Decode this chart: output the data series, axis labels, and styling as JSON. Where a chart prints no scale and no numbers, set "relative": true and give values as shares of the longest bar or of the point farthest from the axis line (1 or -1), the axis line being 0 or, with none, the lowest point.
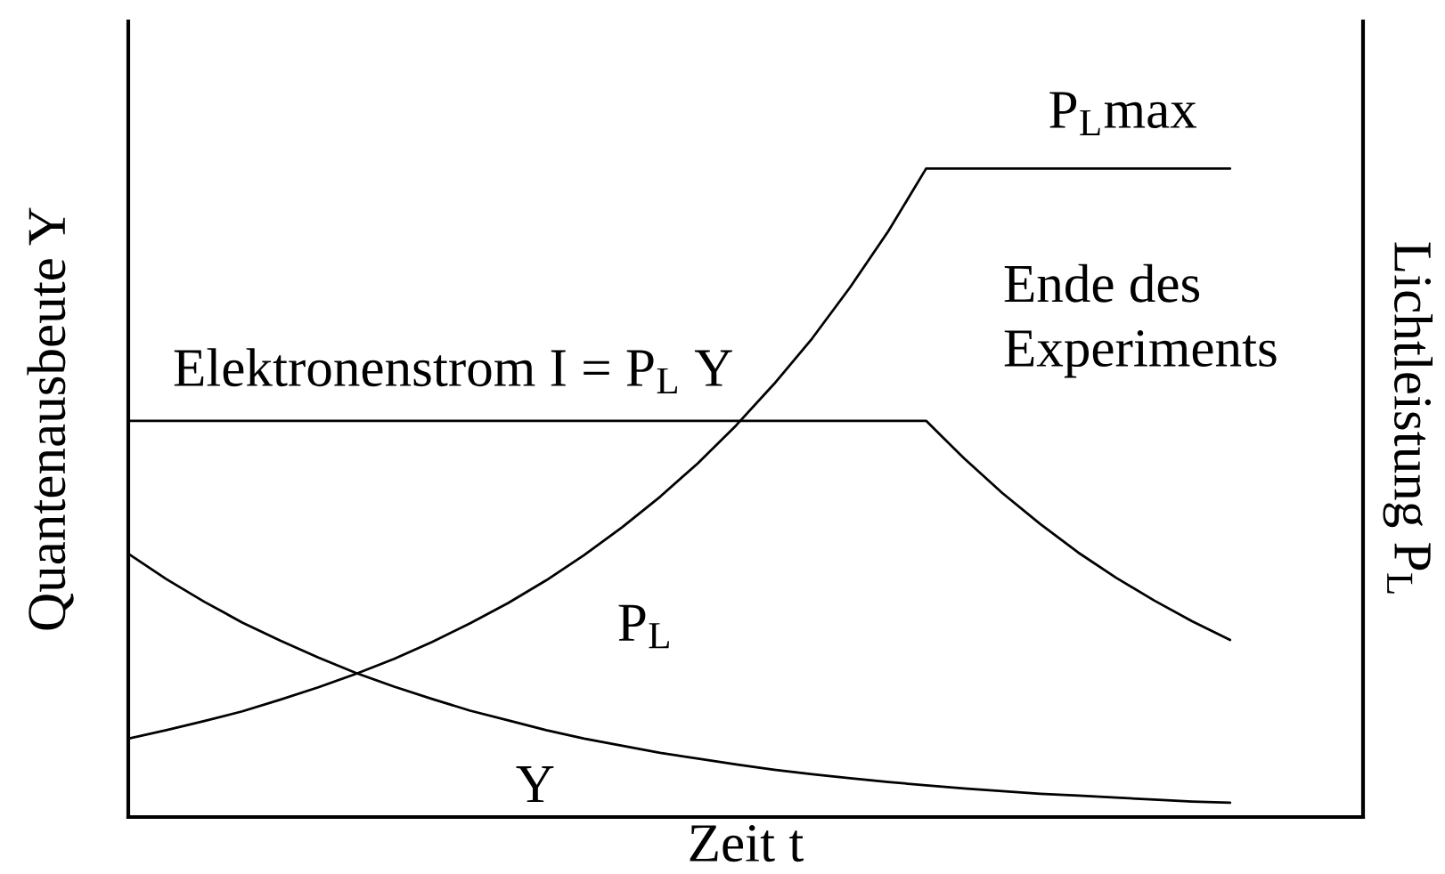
{
  "chart_data": {
    "type": "line",
    "relative": true,
    "xlabel": "Zeit t",
    "ylabel": "Quantenausbeute Y",
    "y2label": "Lichtleistung P$_{L}$",
    "categories": [
      null,
      null,
      null,
      null,
      null,
      null,
      null,
      null,
      null,
      null,
      null,
      null,
      null,
      null,
      null,
      null,
      null,
      null,
      null,
      null,
      null,
      null,
      null,
      null,
      null,
      null,
      null,
      null,
      null,
      null
    ],
    "series": [
      {
        "name": "Elektronenstrom I = P$_{L}$ Y",
        "color": "#000000",
        "values": [
          0.611,
          0.611,
          0.611,
          0.611,
          0.611,
          0.611,
          0.611,
          0.611,
          0.611,
          0.611,
          0.611,
          0.611,
          0.611,
          0.611,
          0.611,
          0.611,
          0.611,
          0.611,
          0.611,
          0.611,
          0.611,
          0.611,
          0.553,
          0.5,
          0.452,
          0.408,
          0.369,
          0.334,
          0.302,
          0.273
        ]
      },
      {
        "name": "P$_{L}$",
        "color": "#000000",
        "values": [
          0.121,
          0.134,
          0.148,
          0.163,
          0.181,
          0.2,
          0.221,
          0.244,
          0.27,
          0.299,
          0.33,
          0.365,
          0.404,
          0.447,
          0.494,
          0.546,
          0.604,
          0.668,
          0.738,
          0.817,
          0.903,
          1,
          1,
          1,
          1,
          1,
          1,
          1,
          1,
          1
        ]
      },
      {
        "name": "Y",
        "color": "#000000",
        "values": [
          0.406,
          0.367,
          0.332,
          0.3,
          0.272,
          0.246,
          0.222,
          0.201,
          0.182,
          0.164,
          0.149,
          0.134,
          0.121,
          0.11,
          0.099,
          0.09,
          0.081,
          0.073,
          0.066,
          0.06,
          0.054,
          0.049,
          0.044,
          0.04,
          0.036,
          0.033,
          0.03,
          0.027,
          0.024,
          0.022
        ]
      }
    ],
    "annotations": [
      "P$_{L}$max",
      "Ende des\nExperiments"
    ]
  }
}
